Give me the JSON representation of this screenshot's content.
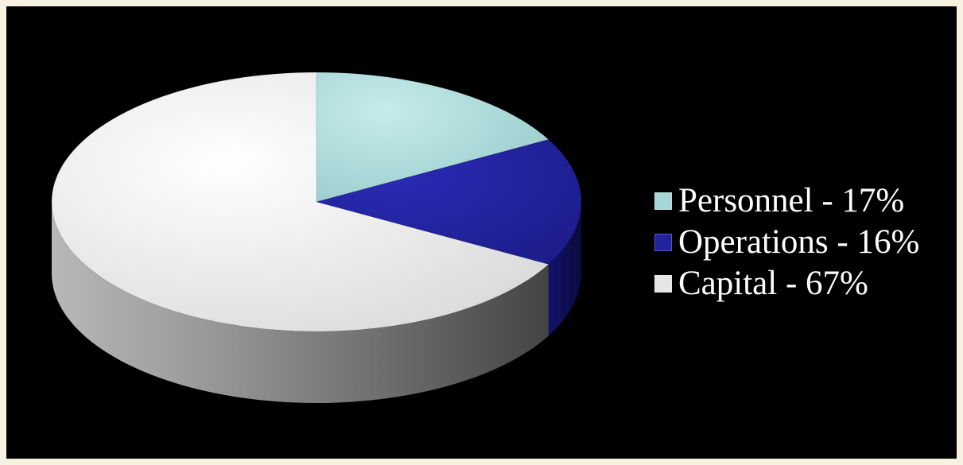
{
  "chart_data": {
    "type": "pie",
    "title": "",
    "slices": [
      {
        "label": "Personnel - 17%",
        "name": "Personnel",
        "value": 17,
        "color": "#a6d6d6"
      },
      {
        "label": "Operations - 16%",
        "name": "Operations",
        "value": 16,
        "color": "#22229e"
      },
      {
        "label": "Capital - 67%",
        "name": "Capital",
        "value": 67,
        "color": "#e6e6e6"
      }
    ],
    "legend_position": "right",
    "style": "3d-tilted"
  },
  "colors": {
    "page_background": "#f7f1e1",
    "chart_background": "#000000",
    "legend_text": "#ffffff"
  }
}
